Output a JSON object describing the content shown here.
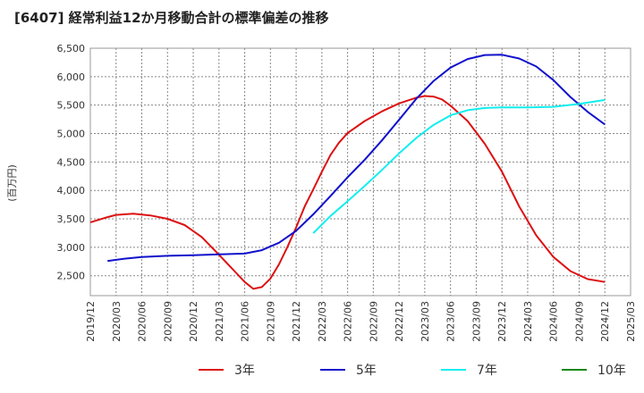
{
  "chart_data": {
    "type": "line",
    "title": "[6407]  経常利益12か月移動合計の標準偏差の推移",
    "ylabel": "(百万円)",
    "ylim": [
      2150,
      6500
    ],
    "yticks": [
      2500,
      3000,
      3500,
      4000,
      4500,
      5000,
      5500,
      6000,
      6500
    ],
    "ytick_labels": [
      "2,500",
      "3,000",
      "3,500",
      "4,000",
      "4,500",
      "5,000",
      "5,500",
      "6,000",
      "6,500"
    ],
    "xticks": [
      "2019/12",
      "2020/03",
      "2020/06",
      "2020/09",
      "2020/12",
      "2021/03",
      "2021/06",
      "2021/09",
      "2021/12",
      "2022/03",
      "2022/06",
      "2022/09",
      "2022/12",
      "2023/03",
      "2023/06",
      "2023/09",
      "2023/12",
      "2024/03",
      "2024/06",
      "2024/09",
      "2024/12",
      "2025/03"
    ],
    "grid": true,
    "legend_position": "bottom",
    "series": [
      {
        "name": "3年",
        "color": "#dd1111",
        "points": [
          [
            "2019/12",
            3440
          ],
          [
            "2020/02",
            3530
          ],
          [
            "2020/03",
            3570
          ],
          [
            "2020/05",
            3590
          ],
          [
            "2020/07",
            3560
          ],
          [
            "2020/09",
            3500
          ],
          [
            "2020/11",
            3390
          ],
          [
            "2021/01",
            3180
          ],
          [
            "2021/03",
            2870
          ],
          [
            "2021/05",
            2550
          ],
          [
            "2021/06",
            2390
          ],
          [
            "2021/07",
            2270
          ],
          [
            "2021/08",
            2300
          ],
          [
            "2021/09",
            2450
          ],
          [
            "2021/10",
            2700
          ],
          [
            "2021/11",
            3010
          ],
          [
            "2021/12",
            3350
          ],
          [
            "2022/01",
            3720
          ],
          [
            "2022/02",
            4020
          ],
          [
            "2022/03",
            4330
          ],
          [
            "2022/04",
            4620
          ],
          [
            "2022/05",
            4840
          ],
          [
            "2022/06",
            5010
          ],
          [
            "2022/08",
            5220
          ],
          [
            "2022/10",
            5390
          ],
          [
            "2022/12",
            5530
          ],
          [
            "2023/02",
            5630
          ],
          [
            "2023/03",
            5660
          ],
          [
            "2023/04",
            5650
          ],
          [
            "2023/05",
            5600
          ],
          [
            "2023/06",
            5490
          ],
          [
            "2023/08",
            5220
          ],
          [
            "2023/10",
            4820
          ],
          [
            "2023/12",
            4330
          ],
          [
            "2024/02",
            3720
          ],
          [
            "2024/04",
            3210
          ],
          [
            "2024/06",
            2830
          ],
          [
            "2024/08",
            2580
          ],
          [
            "2024/10",
            2440
          ],
          [
            "2024/12",
            2390
          ]
        ]
      },
      {
        "name": "5年",
        "color": "#1111cc",
        "points": [
          [
            "2020/02",
            2760
          ],
          [
            "2020/04",
            2800
          ],
          [
            "2020/06",
            2830
          ],
          [
            "2020/09",
            2850
          ],
          [
            "2020/12",
            2860
          ],
          [
            "2021/03",
            2875
          ],
          [
            "2021/06",
            2890
          ],
          [
            "2021/08",
            2950
          ],
          [
            "2021/10",
            3080
          ],
          [
            "2021/12",
            3290
          ],
          [
            "2022/02",
            3580
          ],
          [
            "2022/04",
            3900
          ],
          [
            "2022/06",
            4230
          ],
          [
            "2022/08",
            4540
          ],
          [
            "2022/10",
            4880
          ],
          [
            "2022/12",
            5240
          ],
          [
            "2023/02",
            5610
          ],
          [
            "2023/04",
            5920
          ],
          [
            "2023/06",
            6160
          ],
          [
            "2023/08",
            6310
          ],
          [
            "2023/10",
            6380
          ],
          [
            "2023/12",
            6385
          ],
          [
            "2024/02",
            6320
          ],
          [
            "2024/04",
            6180
          ],
          [
            "2024/06",
            5940
          ],
          [
            "2024/08",
            5640
          ],
          [
            "2024/10",
            5380
          ],
          [
            "2024/12",
            5160
          ]
        ]
      },
      {
        "name": "7年",
        "color": "#11eeee",
        "points": [
          [
            "2022/02",
            3250
          ],
          [
            "2022/04",
            3550
          ],
          [
            "2022/06",
            3810
          ],
          [
            "2022/08",
            4080
          ],
          [
            "2022/10",
            4360
          ],
          [
            "2022/12",
            4650
          ],
          [
            "2023/02",
            4920
          ],
          [
            "2023/04",
            5150
          ],
          [
            "2023/06",
            5320
          ],
          [
            "2023/08",
            5410
          ],
          [
            "2023/10",
            5450
          ],
          [
            "2023/12",
            5460
          ],
          [
            "2024/03",
            5460
          ],
          [
            "2024/06",
            5470
          ],
          [
            "2024/09",
            5520
          ],
          [
            "2024/12",
            5590
          ]
        ]
      },
      {
        "name": "10年",
        "color": "#118811",
        "points": []
      }
    ]
  }
}
